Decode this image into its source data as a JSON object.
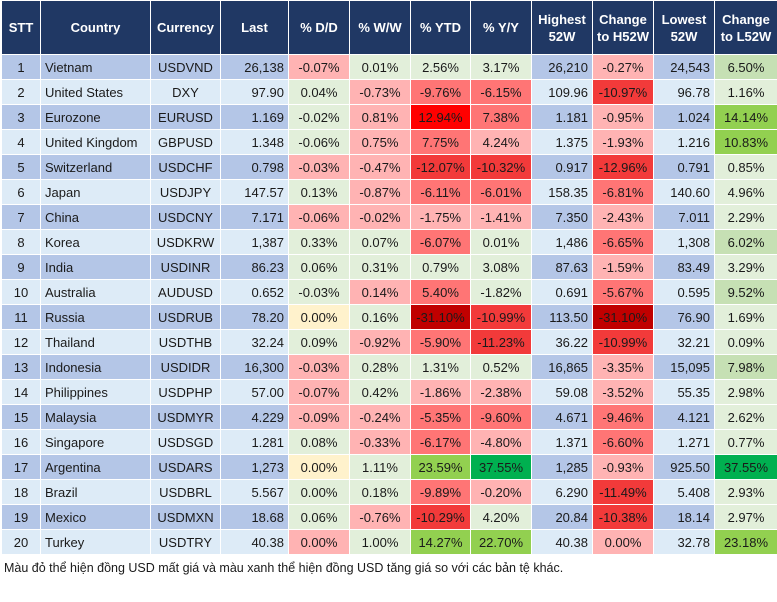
{
  "headers": [
    "STT",
    "Country",
    "Currency",
    "Last",
    "% D/D",
    "% W/W",
    "% YTD",
    "% Y/Y",
    "Highest 52W",
    "Change to H52W",
    "Lowest 52W",
    "Change to L52W"
  ],
  "colors": {
    "header": "#203864",
    "row_odd": "#b4c6e7",
    "row_even": "#ddebf7",
    "light_green": "#e2efda",
    "light_pink": "#ffb3b3",
    "medium_red": "#ff7575",
    "red": "#f23a3a",
    "dark_red": "#c00000",
    "bright_red": "#ff0000",
    "light_yellow": "#fff2cc",
    "mid_green": "#c6e0b4",
    "lime": "#92d050",
    "dark_green": "#00b050"
  },
  "rows": [
    {
      "cells": [
        "1",
        "Vietnam",
        "USDVND",
        "26,138",
        "-0.07%",
        "0.01%",
        "2.56%",
        "3.17%",
        "26,210",
        "-0.27%",
        "24,543",
        "6.50%"
      ],
      "heat": [
        "p",
        "g",
        "g",
        "g",
        "p",
        "G"
      ]
    },
    {
      "cells": [
        "2",
        "United States",
        "DXY",
        "97.90",
        "0.04%",
        "-0.73%",
        "-9.76%",
        "-6.15%",
        "109.96",
        "-10.97%",
        "96.78",
        "1.16%"
      ],
      "heat": [
        "g",
        "p",
        "m",
        "m",
        "rr",
        "g"
      ]
    },
    {
      "cells": [
        "3",
        "Eurozone",
        "EURUSD",
        "1.169",
        "-0.02%",
        "0.81%",
        "12.94%",
        "7.38%",
        "1.181",
        "-0.95%",
        "1.024",
        "14.14%"
      ],
      "heat": [
        "g",
        "p",
        "R",
        "m",
        "p",
        "L"
      ]
    },
    {
      "cells": [
        "4",
        "United Kingdom",
        "GBPUSD",
        "1.348",
        "-0.06%",
        "0.75%",
        "7.75%",
        "4.24%",
        "1.375",
        "-1.93%",
        "1.216",
        "10.83%"
      ],
      "heat": [
        "g",
        "p",
        "m",
        "p",
        "p",
        "L"
      ]
    },
    {
      "cells": [
        "5",
        "Switzerland",
        "USDCHF",
        "0.798",
        "-0.03%",
        "-0.47%",
        "-12.07%",
        "-10.32%",
        "0.917",
        "-12.96%",
        "0.791",
        "0.85%"
      ],
      "heat": [
        "p",
        "p",
        "rr",
        "rr",
        "rr",
        "g"
      ]
    },
    {
      "cells": [
        "6",
        "Japan",
        "USDJPY",
        "147.57",
        "0.13%",
        "-0.87%",
        "-6.11%",
        "-6.01%",
        "158.35",
        "-6.81%",
        "140.60",
        "4.96%"
      ],
      "heat": [
        "g",
        "p",
        "m",
        "m",
        "m",
        "g"
      ]
    },
    {
      "cells": [
        "7",
        "China",
        "USDCNY",
        "7.171",
        "-0.06%",
        "-0.02%",
        "-1.75%",
        "-1.41%",
        "7.350",
        "-2.43%",
        "7.011",
        "2.29%"
      ],
      "heat": [
        "p",
        "p",
        "p",
        "p",
        "p",
        "g"
      ]
    },
    {
      "cells": [
        "8",
        "Korea",
        "USDKRW",
        "1,387",
        "0.33%",
        "0.07%",
        "-6.07%",
        "0.01%",
        "1,486",
        "-6.65%",
        "1,308",
        "6.02%"
      ],
      "heat": [
        "g",
        "g",
        "m",
        "g",
        "m",
        "G"
      ]
    },
    {
      "cells": [
        "9",
        "India",
        "USDINR",
        "86.23",
        "0.06%",
        "0.31%",
        "0.79%",
        "3.08%",
        "87.63",
        "-1.59%",
        "83.49",
        "3.29%"
      ],
      "heat": [
        "g",
        "g",
        "g",
        "g",
        "p",
        "g"
      ]
    },
    {
      "cells": [
        "10",
        "Australia",
        "AUDUSD",
        "0.652",
        "-0.03%",
        "0.14%",
        "5.40%",
        "-1.82%",
        "0.691",
        "-5.67%",
        "0.595",
        "9.52%"
      ],
      "heat": [
        "g",
        "p",
        "m",
        "g",
        "m",
        "G"
      ]
    },
    {
      "cells": [
        "11",
        "Russia",
        "USDRUB",
        "78.20",
        "0.00%",
        "0.16%",
        "-31.10%",
        "-10.99%",
        "113.50",
        "-31.10%",
        "76.90",
        "1.69%"
      ],
      "heat": [
        "y",
        "g",
        "d",
        "rr",
        "d",
        "g"
      ]
    },
    {
      "cells": [
        "12",
        "Thailand",
        "USDTHB",
        "32.24",
        "0.09%",
        "-0.92%",
        "-5.90%",
        "-11.23%",
        "36.22",
        "-10.99%",
        "32.21",
        "0.09%"
      ],
      "heat": [
        "g",
        "p",
        "m",
        "rr",
        "rr",
        "g"
      ]
    },
    {
      "cells": [
        "13",
        "Indonesia",
        "USDIDR",
        "16,300",
        "-0.03%",
        "0.28%",
        "1.31%",
        "0.52%",
        "16,865",
        "-3.35%",
        "15,095",
        "7.98%"
      ],
      "heat": [
        "p",
        "g",
        "g",
        "g",
        "p",
        "G"
      ]
    },
    {
      "cells": [
        "14",
        "Philippines",
        "USDPHP",
        "57.00",
        "-0.07%",
        "0.42%",
        "-1.86%",
        "-2.38%",
        "59.08",
        "-3.52%",
        "55.35",
        "2.98%"
      ],
      "heat": [
        "p",
        "g",
        "p",
        "p",
        "p",
        "g"
      ]
    },
    {
      "cells": [
        "15",
        "Malaysia",
        "USDMYR",
        "4.229",
        "-0.09%",
        "-0.24%",
        "-5.35%",
        "-9.60%",
        "4.671",
        "-9.46%",
        "4.121",
        "2.62%"
      ],
      "heat": [
        "p",
        "p",
        "m",
        "m",
        "m",
        "g"
      ]
    },
    {
      "cells": [
        "16",
        "Singapore",
        "USDSGD",
        "1.281",
        "0.08%",
        "-0.33%",
        "-6.17%",
        "-4.80%",
        "1.371",
        "-6.60%",
        "1.271",
        "0.77%"
      ],
      "heat": [
        "g",
        "p",
        "m",
        "p",
        "m",
        "g"
      ]
    },
    {
      "cells": [
        "17",
        "Argentina",
        "USDARS",
        "1,273",
        "0.00%",
        "1.11%",
        "23.59%",
        "37.55%",
        "1,285",
        "-0.93%",
        "925.50",
        "37.55%"
      ],
      "heat": [
        "y",
        "g",
        "L",
        "D",
        "p",
        "D"
      ]
    },
    {
      "cells": [
        "18",
        "Brazil",
        "USDBRL",
        "5.567",
        "0.00%",
        "0.18%",
        "-9.89%",
        "-0.20%",
        "6.290",
        "-11.49%",
        "5.408",
        "2.93%"
      ],
      "heat": [
        "g",
        "g",
        "m",
        "p",
        "rr",
        "g"
      ]
    },
    {
      "cells": [
        "19",
        "Mexico",
        "USDMXN",
        "18.68",
        "0.06%",
        "-0.76%",
        "-10.29%",
        "4.20%",
        "20.84",
        "-10.38%",
        "18.14",
        "2.97%"
      ],
      "heat": [
        "g",
        "p",
        "rr",
        "g",
        "rr",
        "g"
      ]
    },
    {
      "cells": [
        "20",
        "Turkey",
        "USDTRY",
        "40.38",
        "0.00%",
        "1.00%",
        "14.27%",
        "22.70%",
        "40.38",
        "0.00%",
        "32.78",
        "23.18%"
      ],
      "heat": [
        "p",
        "g",
        "L",
        "L",
        "p",
        "L"
      ]
    }
  ],
  "footer": "Màu đỏ thể hiện đồng USD mất giá và màu xanh thể hiện đồng USD tăng giá so với các bản tệ khác."
}
